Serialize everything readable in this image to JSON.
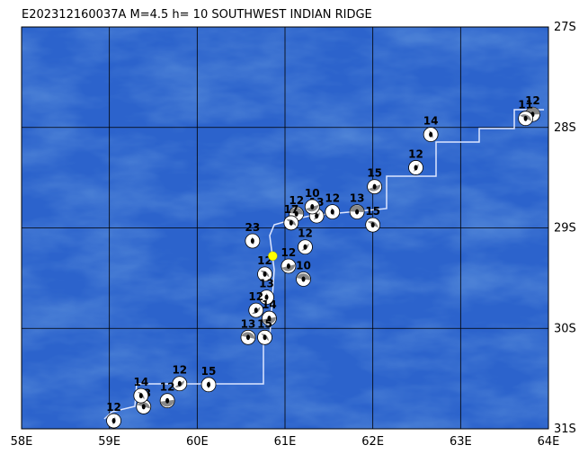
{
  "map": {
    "title": "E202312160037A M=4.5 h= 10 SOUTHWEST INDIAN RIDGE",
    "xlim": [
      58,
      64
    ],
    "ylim": [
      27,
      31
    ],
    "xticks": [
      {
        "value": 58,
        "label": "58E"
      },
      {
        "value": 59,
        "label": "59E"
      },
      {
        "value": 60,
        "label": "60E"
      },
      {
        "value": 61,
        "label": "61E"
      },
      {
        "value": 62,
        "label": "62E"
      },
      {
        "value": 63,
        "label": "63E"
      },
      {
        "value": 64,
        "label": "64E"
      }
    ],
    "yticks": [
      {
        "value": 27,
        "label": "27S"
      },
      {
        "value": 28,
        "label": "28S"
      },
      {
        "value": 29,
        "label": "29S"
      },
      {
        "value": 30,
        "label": "30S"
      },
      {
        "value": 31,
        "label": "31S"
      }
    ],
    "mainshock": {
      "lon": 60.86,
      "lat": 29.28,
      "color": "#ffff00"
    },
    "events": [
      {
        "lon": 63.82,
        "lat": 27.87,
        "depth": 12
      },
      {
        "lon": 63.74,
        "lat": 27.91,
        "depth": 11
      },
      {
        "lon": 62.66,
        "lat": 28.07,
        "depth": 14
      },
      {
        "lon": 62.49,
        "lat": 28.4,
        "depth": 12
      },
      {
        "lon": 62.02,
        "lat": 28.59,
        "depth": 15
      },
      {
        "lon": 61.82,
        "lat": 28.84,
        "depth": 13
      },
      {
        "lon": 62.0,
        "lat": 28.97,
        "depth": 15
      },
      {
        "lon": 61.54,
        "lat": 28.84,
        "depth": 12
      },
      {
        "lon": 61.36,
        "lat": 28.88,
        "depth": 13
      },
      {
        "lon": 61.31,
        "lat": 28.79,
        "depth": 10
      },
      {
        "lon": 61.13,
        "lat": 28.86,
        "depth": 12
      },
      {
        "lon": 61.07,
        "lat": 28.95,
        "depth": 17
      },
      {
        "lon": 60.63,
        "lat": 29.13,
        "depth": 23
      },
      {
        "lon": 61.23,
        "lat": 29.19,
        "depth": 12
      },
      {
        "lon": 61.04,
        "lat": 29.38,
        "depth": 12
      },
      {
        "lon": 61.21,
        "lat": 29.51,
        "depth": 10
      },
      {
        "lon": 60.77,
        "lat": 29.46,
        "depth": 12
      },
      {
        "lon": 60.79,
        "lat": 29.69,
        "depth": 13
      },
      {
        "lon": 60.67,
        "lat": 29.82,
        "depth": 12
      },
      {
        "lon": 60.82,
        "lat": 29.9,
        "depth": 14
      },
      {
        "lon": 60.58,
        "lat": 30.09,
        "depth": 13
      },
      {
        "lon": 60.77,
        "lat": 30.09,
        "depth": 15
      },
      {
        "lon": 60.13,
        "lat": 30.56,
        "depth": 15
      },
      {
        "lon": 59.8,
        "lat": 30.55,
        "depth": 12
      },
      {
        "lon": 59.66,
        "lat": 30.72,
        "depth": 12
      },
      {
        "lon": 59.39,
        "lat": 30.78,
        "depth": 13
      },
      {
        "lon": 59.36,
        "lat": 30.67,
        "depth": 14
      },
      {
        "lon": 59.05,
        "lat": 30.92,
        "depth": 12
      }
    ]
  }
}
